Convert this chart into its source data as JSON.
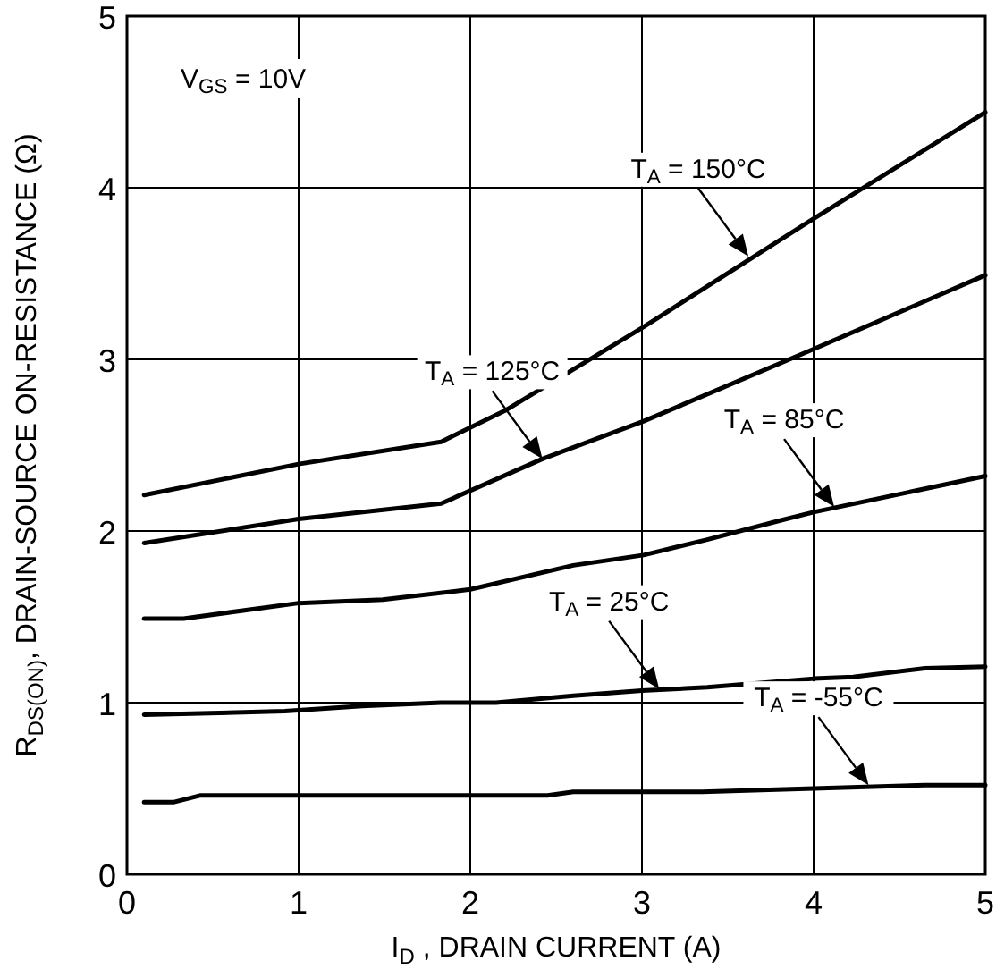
{
  "chart_data": {
    "type": "line",
    "xlabel": "I$_{D}$ , DRAIN CURRENT (A)",
    "ylabel": "R$_{DS(ON)}$, DRAIN-SOURCE ON-RESISTANCE (Ω)",
    "xlim": [
      0,
      5
    ],
    "ylim": [
      0,
      5
    ],
    "xticks": [
      0,
      1,
      2,
      3,
      4,
      5
    ],
    "yticks": [
      0,
      1,
      2,
      3,
      4,
      5
    ],
    "grid": true,
    "marker": "none",
    "line_style": "solid",
    "annotations": [
      "V$_{GS}$ = 10V",
      {
        "text": "T$_{A}$ = 150°C",
        "x": 3.62,
        "y": 3.6
      },
      {
        "text": "T$_{A}$ = 125°C",
        "x": 2.42,
        "y": 2.42
      },
      {
        "text": "T$_{A}$ = 85°C",
        "x": 4.12,
        "y": 2.14
      },
      {
        "text": "T$_{A}$ = 25°C",
        "x": 3.1,
        "y": 1.08
      },
      {
        "text": "T$_{A}$ = -55°C",
        "x": 4.32,
        "y": 0.52
      }
    ],
    "series": [
      {
        "color": "#000000",
        "x": [
          0.1,
          1.0,
          1.83,
          2.2,
          3.01,
          4.0,
          5.0
        ],
        "values": [
          2.21,
          2.39,
          2.52,
          2.7,
          3.19,
          3.82,
          4.44
        ]
      },
      {
        "color": "#000000",
        "x": [
          0.1,
          1.0,
          1.83,
          2.42,
          3.01,
          4.0,
          5.0
        ],
        "values": [
          1.93,
          2.07,
          2.16,
          2.42,
          2.64,
          3.06,
          3.49
        ]
      },
      {
        "color": "#000000",
        "x": [
          0.1,
          0.33,
          1.0,
          1.49,
          2.0,
          2.6,
          3.01,
          3.38,
          3.8,
          4.0,
          5.0
        ],
        "values": [
          1.49,
          1.49,
          1.58,
          1.6,
          1.66,
          1.8,
          1.86,
          1.95,
          2.06,
          2.11,
          2.32
        ]
      },
      {
        "color": "#000000",
        "x": [
          0.1,
          0.92,
          1.37,
          1.83,
          2.15,
          2.6,
          3.0,
          3.38,
          4.0,
          4.23,
          4.65,
          5.0
        ],
        "values": [
          0.93,
          0.95,
          0.98,
          1.0,
          1.0,
          1.04,
          1.07,
          1.09,
          1.14,
          1.15,
          1.2,
          1.21
        ]
      },
      {
        "color": "#000000",
        "x": [
          0.1,
          0.27,
          0.43,
          2.45,
          2.6,
          3.35,
          4.0,
          4.65,
          5.0
        ],
        "values": [
          0.42,
          0.42,
          0.46,
          0.46,
          0.48,
          0.48,
          0.5,
          0.52,
          0.52
        ]
      }
    ]
  }
}
